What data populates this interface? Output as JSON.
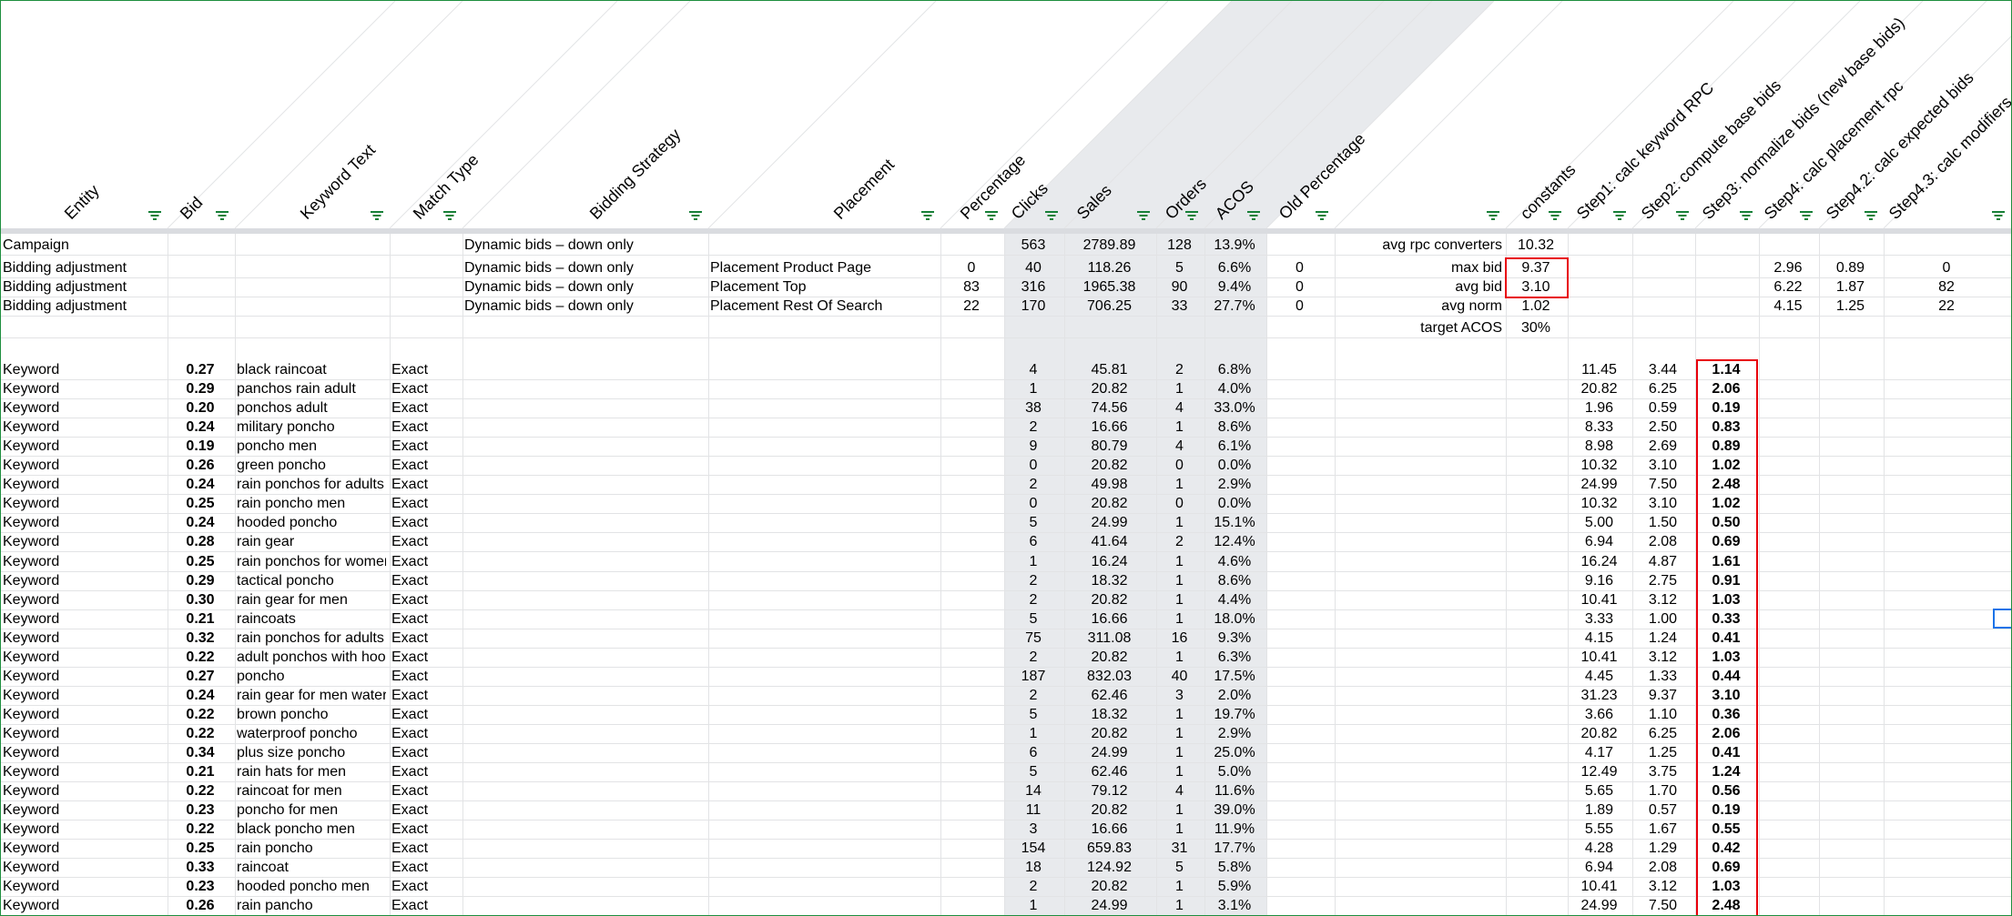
{
  "headers": [
    {
      "label": "Entity",
      "filter": true
    },
    {
      "label": "Bid",
      "filter": true
    },
    {
      "label": "Keyword Text",
      "filter": true
    },
    {
      "label": "Match Type",
      "filter": true
    },
    {
      "label": "Bidding Strategy",
      "filter": true
    },
    {
      "label": "Placement",
      "filter": true
    },
    {
      "label": "Percentage",
      "filter": true
    },
    {
      "label": "Clicks",
      "filter": true
    },
    {
      "label": "Sales",
      "filter": true
    },
    {
      "label": "Orders",
      "filter": true
    },
    {
      "label": "ACOS",
      "filter": true
    },
    {
      "label": "Old Percentage",
      "filter": true
    },
    {
      "label": "",
      "filter": true
    },
    {
      "label": "constants",
      "filter": true
    },
    {
      "label": "Step1: calc keyword RPC",
      "filter": true
    },
    {
      "label": "Step2: compute base bids",
      "filter": true
    },
    {
      "label": "Step3: normalize bids (new base bids)",
      "filter": true
    },
    {
      "label": "Step4: calc placement rpc",
      "filter": true
    },
    {
      "label": "Step4.2: calc expected bids",
      "filter": true
    },
    {
      "label": "Step4.3: calc modifiers",
      "filter": true
    }
  ],
  "summary_rows": [
    [
      "Campaign",
      "",
      "",
      "",
      "Dynamic bids – down only",
      "",
      "",
      "563",
      "2789.89",
      "128",
      "13.9%",
      "",
      "avg rpc converters",
      "10.32",
      "",
      "",
      "",
      "",
      "",
      ""
    ],
    [
      "Bidding adjustment",
      "",
      "",
      "",
      "Dynamic bids – down only",
      "Placement Product Page",
      "0",
      "40",
      "118.26",
      "5",
      "6.6%",
      "0",
      "max bid",
      "9.37",
      "",
      "",
      "",
      "2.96",
      "0.89",
      "0"
    ],
    [
      "Bidding adjustment",
      "",
      "",
      "",
      "Dynamic bids – down only",
      "Placement Top",
      "83",
      "316",
      "1965.38",
      "90",
      "9.4%",
      "0",
      "avg bid",
      "3.10",
      "",
      "",
      "",
      "6.22",
      "1.87",
      "82"
    ],
    [
      "Bidding adjustment",
      "",
      "",
      "",
      "Dynamic bids – down only",
      "Placement Rest Of Search",
      "22",
      "170",
      "706.25",
      "33",
      "27.7%",
      "0",
      "avg norm",
      "1.02",
      "",
      "",
      "",
      "4.15",
      "1.25",
      "22"
    ],
    [
      "",
      "",
      "",
      "",
      "",
      "",
      "",
      "",
      "",
      "",
      "",
      "",
      "target ACOS",
      "30%",
      "",
      "",
      "",
      "",
      "",
      ""
    ]
  ],
  "keyword_rows": [
    [
      "Keyword",
      "0.27",
      "black raincoat",
      "Exact",
      "4",
      "45.81",
      "2",
      "6.8%",
      "11.45",
      "3.44",
      "1.14"
    ],
    [
      "Keyword",
      "0.29",
      "panchos rain adult",
      "Exact",
      "1",
      "20.82",
      "1",
      "4.0%",
      "20.82",
      "6.25",
      "2.06"
    ],
    [
      "Keyword",
      "0.20",
      "ponchos adult",
      "Exact",
      "38",
      "74.56",
      "4",
      "33.0%",
      "1.96",
      "0.59",
      "0.19"
    ],
    [
      "Keyword",
      "0.24",
      "military poncho",
      "Exact",
      "2",
      "16.66",
      "1",
      "8.6%",
      "8.33",
      "2.50",
      "0.83"
    ],
    [
      "Keyword",
      "0.19",
      "poncho men",
      "Exact",
      "9",
      "80.79",
      "4",
      "6.1%",
      "8.98",
      "2.69",
      "0.89"
    ],
    [
      "Keyword",
      "0.26",
      "green poncho",
      "Exact",
      "0",
      "20.82",
      "0",
      "0.0%",
      "10.32",
      "3.10",
      "1.02"
    ],
    [
      "Keyword",
      "0.24",
      "rain ponchos for adults",
      "Exact",
      "2",
      "49.98",
      "1",
      "2.9%",
      "24.99",
      "7.50",
      "2.48"
    ],
    [
      "Keyword",
      "0.25",
      "rain poncho men",
      "Exact",
      "0",
      "20.82",
      "0",
      "0.0%",
      "10.32",
      "3.10",
      "1.02"
    ],
    [
      "Keyword",
      "0.24",
      "hooded poncho",
      "Exact",
      "5",
      "24.99",
      "1",
      "15.1%",
      "5.00",
      "1.50",
      "0.50"
    ],
    [
      "Keyword",
      "0.28",
      "rain gear",
      "Exact",
      "6",
      "41.64",
      "2",
      "12.4%",
      "6.94",
      "2.08",
      "0.69"
    ],
    [
      "Keyword",
      "0.25",
      "rain ponchos for women",
      "Exact",
      "1",
      "16.24",
      "1",
      "4.6%",
      "16.24",
      "4.87",
      "1.61"
    ],
    [
      "Keyword",
      "0.29",
      "tactical poncho",
      "Exact",
      "2",
      "18.32",
      "1",
      "8.6%",
      "9.16",
      "2.75",
      "0.91"
    ],
    [
      "Keyword",
      "0.30",
      "rain gear for men",
      "Exact",
      "2",
      "20.82",
      "1",
      "4.4%",
      "10.41",
      "3.12",
      "1.03"
    ],
    [
      "Keyword",
      "0.21",
      "raincoats",
      "Exact",
      "5",
      "16.66",
      "1",
      "18.0%",
      "3.33",
      "1.00",
      "0.33"
    ],
    [
      "Keyword",
      "0.32",
      "rain ponchos for adults",
      "Exact",
      "75",
      "311.08",
      "16",
      "9.3%",
      "4.15",
      "1.24",
      "0.41"
    ],
    [
      "Keyword",
      "0.22",
      "adult ponchos with hood",
      "Exact",
      "2",
      "20.82",
      "1",
      "6.3%",
      "10.41",
      "3.12",
      "1.03"
    ],
    [
      "Keyword",
      "0.27",
      "poncho",
      "Exact",
      "187",
      "832.03",
      "40",
      "17.5%",
      "4.45",
      "1.33",
      "0.44"
    ],
    [
      "Keyword",
      "0.24",
      "rain gear for men waterproof",
      "Exact",
      "2",
      "62.46",
      "3",
      "2.0%",
      "31.23",
      "9.37",
      "3.10"
    ],
    [
      "Keyword",
      "0.22",
      "brown poncho",
      "Exact",
      "5",
      "18.32",
      "1",
      "19.7%",
      "3.66",
      "1.10",
      "0.36"
    ],
    [
      "Keyword",
      "0.22",
      "waterproof poncho",
      "Exact",
      "1",
      "20.82",
      "1",
      "2.9%",
      "20.82",
      "6.25",
      "2.06"
    ],
    [
      "Keyword",
      "0.34",
      "plus size poncho",
      "Exact",
      "6",
      "24.99",
      "1",
      "25.0%",
      "4.17",
      "1.25",
      "0.41"
    ],
    [
      "Keyword",
      "0.21",
      "rain hats for men",
      "Exact",
      "5",
      "62.46",
      "1",
      "5.0%",
      "12.49",
      "3.75",
      "1.24"
    ],
    [
      "Keyword",
      "0.22",
      "raincoat for men",
      "Exact",
      "14",
      "79.12",
      "4",
      "11.6%",
      "5.65",
      "1.70",
      "0.56"
    ],
    [
      "Keyword",
      "0.23",
      "poncho for men",
      "Exact",
      "11",
      "20.82",
      "1",
      "39.0%",
      "1.89",
      "0.57",
      "0.19"
    ],
    [
      "Keyword",
      "0.22",
      "black poncho men",
      "Exact",
      "3",
      "16.66",
      "1",
      "11.9%",
      "5.55",
      "1.67",
      "0.55"
    ],
    [
      "Keyword",
      "0.25",
      "rain poncho",
      "Exact",
      "154",
      "659.83",
      "31",
      "17.7%",
      "4.28",
      "1.29",
      "0.42"
    ],
    [
      "Keyword",
      "0.33",
      "raincoat",
      "Exact",
      "18",
      "124.92",
      "5",
      "5.8%",
      "6.94",
      "2.08",
      "0.69"
    ],
    [
      "Keyword",
      "0.23",
      "hooded poncho men",
      "Exact",
      "2",
      "20.82",
      "1",
      "5.9%",
      "10.41",
      "3.12",
      "1.03"
    ],
    [
      "Keyword",
      "0.26",
      "rain pancho",
      "Exact",
      "1",
      "24.99",
      "1",
      "3.1%",
      "24.99",
      "7.50",
      "2.48"
    ]
  ],
  "colors": {
    "highlight": "#e8000b",
    "filter_icon": "#188038",
    "shade": "#e8eaed",
    "selection": "#1a73e8"
  }
}
